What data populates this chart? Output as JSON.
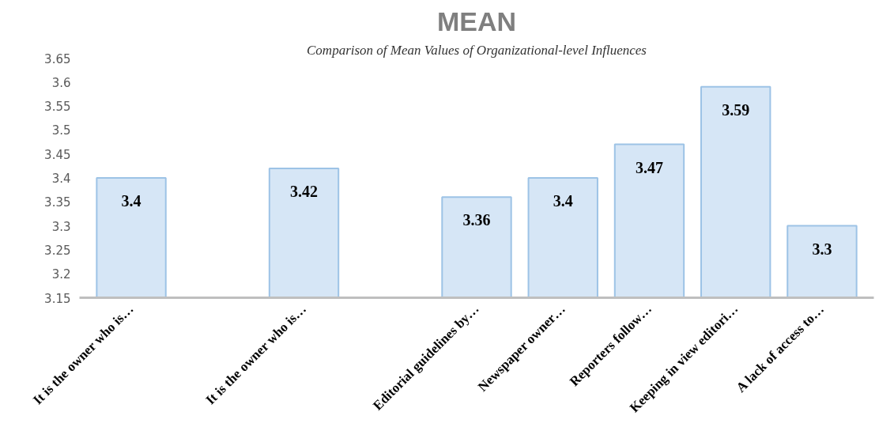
{
  "chart_data": {
    "type": "bar",
    "title": "MEAN",
    "annotations": [
      "Comparison of Mean Values of Organizational-level Influences"
    ],
    "categories": [
      "It is the owner who is…",
      null,
      "It is the owner who is…",
      null,
      "Editorial guidelines by…",
      "Newspaper owner…",
      "Reporters follow…",
      "Keeping in view editori…",
      "A lack of access to…"
    ],
    "values": [
      3.4,
      null,
      3.42,
      null,
      3.36,
      3.4,
      3.47,
      3.59,
      3.3
    ],
    "color": "#d6e6f6",
    "ylim": [
      3.15,
      3.65
    ],
    "yticks": [
      3.15,
      3.2,
      3.25,
      3.3,
      3.35,
      3.4,
      3.45,
      3.5,
      3.55,
      3.6,
      3.65
    ],
    "grid": false,
    "data_labels": true
  }
}
